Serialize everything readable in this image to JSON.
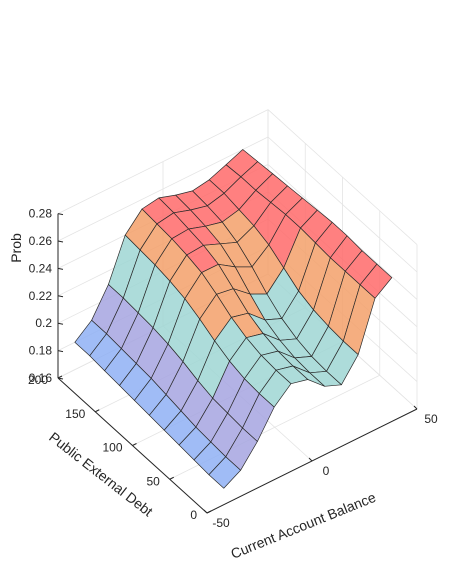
{
  "chart_data": {
    "type": "surface",
    "title": "",
    "xlabel": "Current Account Balance",
    "ylabel": "Public External Debt",
    "zlabel": "Prob",
    "xlim": [
      -50,
      50
    ],
    "ylim": [
      0,
      200
    ],
    "zlim": [
      0.16,
      0.28
    ],
    "x_ticks": [
      "-50",
      "0",
      "50"
    ],
    "y_ticks": [
      "0",
      "50",
      "100",
      "150",
      "200"
    ],
    "z_ticks": [
      "0.16",
      "0.18",
      "0.2",
      "0.22",
      "0.24",
      "0.26",
      "0.28"
    ],
    "grid": true,
    "colormap": [
      "#8fb0f5",
      "#a6a4e0",
      "#9fd6d3",
      "#f3a06a",
      "#ff6a6a"
    ],
    "x": [
      -42,
      -34,
      -26,
      -18,
      -10,
      -2,
      6,
      14,
      22,
      30,
      38
    ],
    "y": [
      200,
      180,
      160,
      140,
      120,
      100,
      80,
      60,
      40,
      20,
      0
    ],
    "z": [
      [
        0.18,
        0.19,
        0.21,
        0.24,
        0.253,
        0.255,
        0.251,
        0.248,
        0.25,
        0.255,
        0.26
      ],
      [
        0.18,
        0.19,
        0.21,
        0.239,
        0.252,
        0.254,
        0.25,
        0.247,
        0.25,
        0.256,
        0.261
      ],
      [
        0.179,
        0.189,
        0.209,
        0.238,
        0.251,
        0.252,
        0.248,
        0.245,
        0.248,
        0.256,
        0.262
      ],
      [
        0.178,
        0.188,
        0.208,
        0.236,
        0.249,
        0.25,
        0.245,
        0.24,
        0.246,
        0.257,
        0.263
      ],
      [
        0.177,
        0.187,
        0.206,
        0.233,
        0.246,
        0.246,
        0.238,
        0.232,
        0.242,
        0.258,
        0.264
      ],
      [
        0.176,
        0.185,
        0.203,
        0.228,
        0.24,
        0.238,
        0.228,
        0.222,
        0.235,
        0.258,
        0.265
      ],
      [
        0.175,
        0.183,
        0.199,
        0.222,
        0.233,
        0.23,
        0.219,
        0.214,
        0.228,
        0.257,
        0.266
      ],
      [
        0.174,
        0.181,
        0.196,
        0.217,
        0.228,
        0.225,
        0.214,
        0.209,
        0.224,
        0.256,
        0.266
      ],
      [
        0.173,
        0.18,
        0.195,
        0.214,
        0.225,
        0.222,
        0.211,
        0.206,
        0.222,
        0.256,
        0.265
      ],
      [
        0.172,
        0.179,
        0.194,
        0.213,
        0.224,
        0.221,
        0.21,
        0.205,
        0.221,
        0.256,
        0.265
      ],
      [
        0.172,
        0.179,
        0.194,
        0.213,
        0.224,
        0.221,
        0.21,
        0.205,
        0.221,
        0.256,
        0.265
      ]
    ]
  }
}
